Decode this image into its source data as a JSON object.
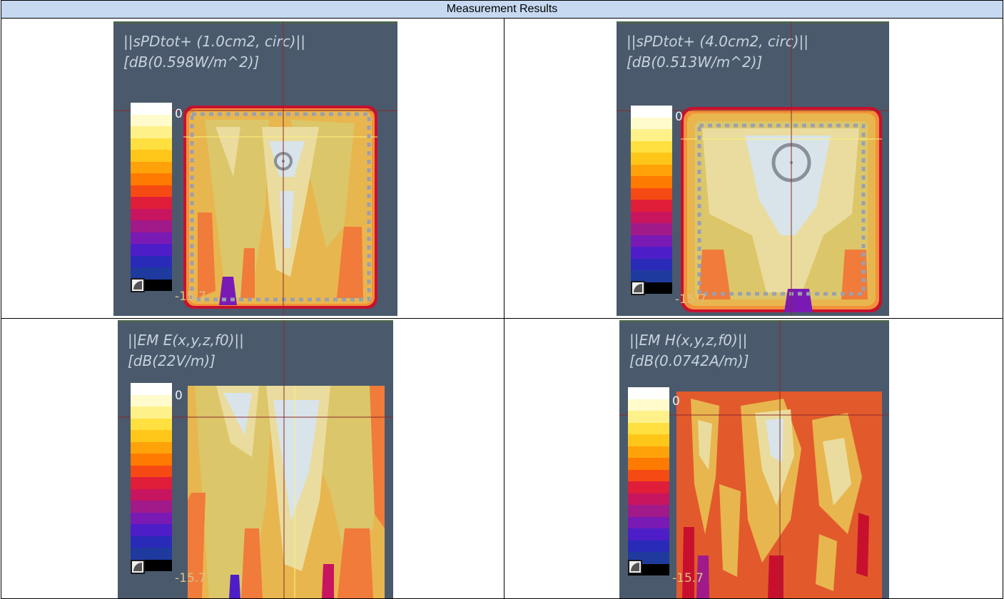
{
  "table": {
    "header": "Measurement Results"
  },
  "panels": [
    {
      "title_line1": "||sPDtot+ (1.0cm2, circ)||",
      "title_line2": "[dB(0.598W/m^2)]",
      "scale_max": "0",
      "scale_min": "-15.7"
    },
    {
      "title_line1": "||sPDtot+ (4.0cm2, circ)||",
      "title_line2": "[dB(0.513W/m^2)]",
      "scale_max": "0",
      "scale_min": "-15.7"
    },
    {
      "title_line1": "||EM E(x,y,z,f0)||",
      "title_line2": "[dB(22V/m)]",
      "scale_max": "0",
      "scale_min": "-15.7"
    },
    {
      "title_line1": "||EM H(x,y,z,f0)||",
      "title_line2": "[dB(0.0742A/m)]",
      "scale_max": "0",
      "scale_min": "-15.7"
    }
  ],
  "colorbar": [
    "#ffffff",
    "#fffbcc",
    "#fff18a",
    "#ffe040",
    "#ffc61a",
    "#ffa20a",
    "#ff7a00",
    "#f54a14",
    "#e01e3a",
    "#c8155f",
    "#a01a8a",
    "#7a1ab4",
    "#4d1ec8",
    "#2a2ab8",
    "#1f3a9e",
    "#000000"
  ]
}
